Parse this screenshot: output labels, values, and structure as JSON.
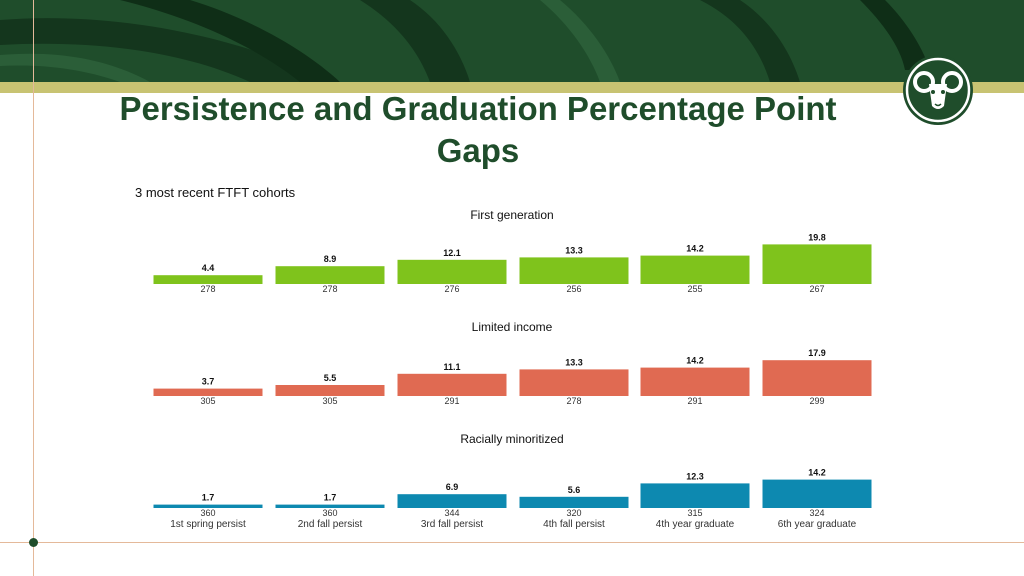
{
  "header": {
    "title": "Persistence and Graduation Percentage Point Gaps",
    "subtitle": "3 most recent FTFT cohorts"
  },
  "colors": {
    "brand_green": "#1f4d2b",
    "gold_stripe": "#c8c372",
    "first_generation": "#7fc31c",
    "limited_income": "#e06a52",
    "racially_minoritized": "#0d89b0"
  },
  "chart_data": {
    "type": "bar",
    "categories": [
      "1st spring persist",
      "2nd fall persist",
      "3rd fall persist",
      "4th fall persist",
      "4th year graduate",
      "6th year graduate"
    ],
    "panels": [
      {
        "title": "First generation",
        "values": [
          4.4,
          8.9,
          12.1,
          13.3,
          14.2,
          19.8
        ],
        "counts": [
          "278",
          "278",
          "276",
          "256",
          "255",
          "267"
        ],
        "color": "#7fc31c"
      },
      {
        "title": "Limited income",
        "values": [
          3.7,
          5.5,
          11.1,
          13.3,
          14.2,
          17.9
        ],
        "counts": [
          "305",
          "305",
          "291",
          "278",
          "291",
          "299"
        ],
        "color": "#e06a52"
      },
      {
        "title": "Racially minoritized",
        "values": [
          1.7,
          1.7,
          6.9,
          5.6,
          12.3,
          14.2
        ],
        "counts": [
          "360",
          "360",
          "344",
          "320",
          "315",
          "324"
        ],
        "color": "#0d89b0"
      }
    ],
    "ylim": [
      0,
      20
    ],
    "grid": false,
    "legend": "none"
  }
}
